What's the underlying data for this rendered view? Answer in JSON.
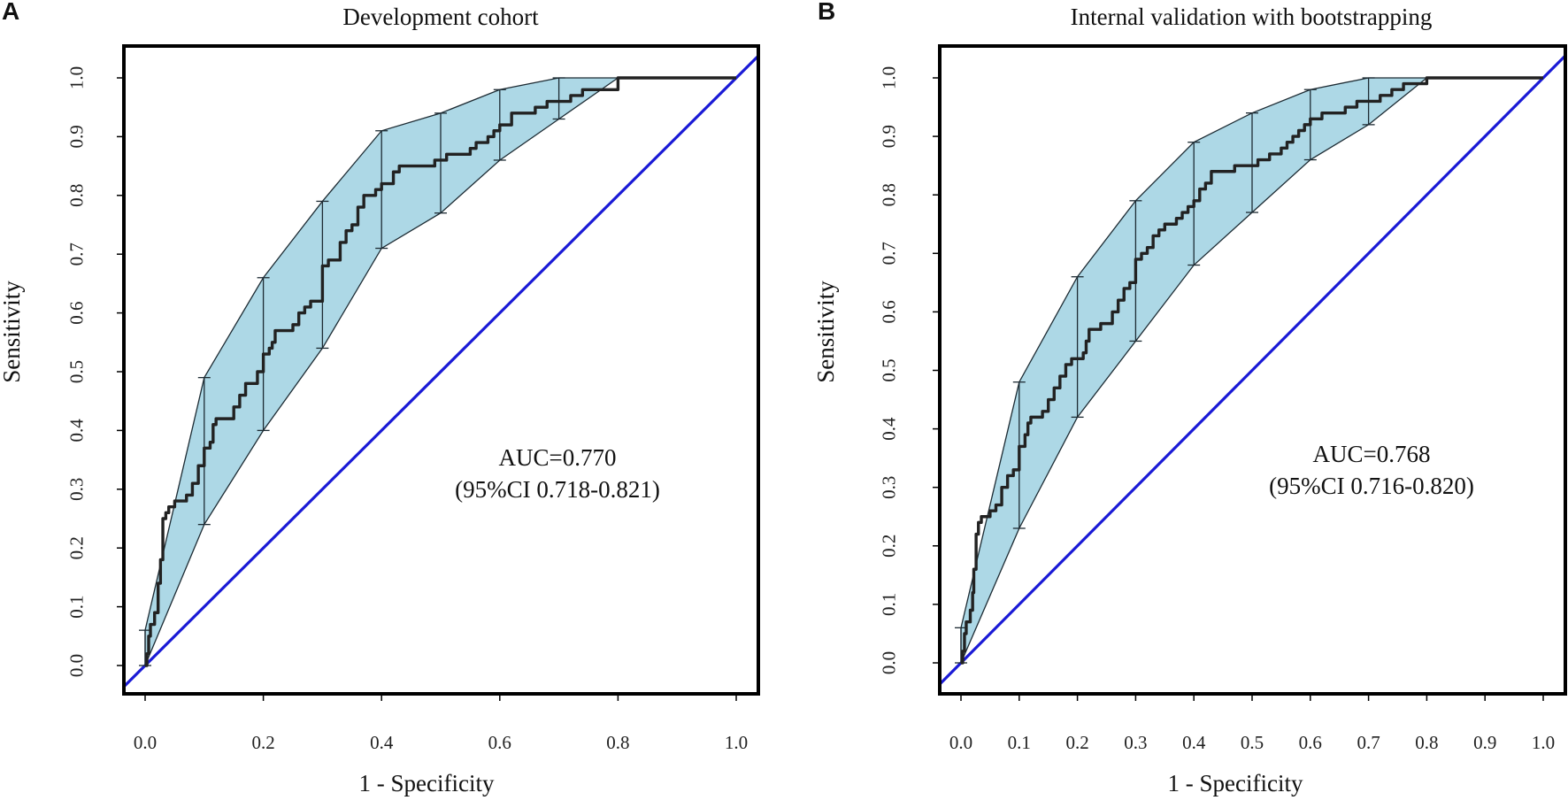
{
  "chart_data": [
    {
      "panel": "A",
      "type": "line",
      "title": "Development cohort",
      "xlabel": "1 - Specificity",
      "ylabel": "Sensitivity",
      "xlim": [
        0,
        1
      ],
      "ylim": [
        0,
        1
      ],
      "xticks": [
        "0.0",
        "0.2",
        "0.4",
        "0.6",
        "0.8",
        "1.0"
      ],
      "yticks": [
        "0.0",
        "0.1",
        "0.2",
        "0.3",
        "0.4",
        "0.5",
        "0.6",
        "0.7",
        "0.8",
        "0.9",
        "1.0"
      ],
      "annotation": {
        "auc": "AUC=0.770",
        "ci": "(95%CI 0.718-0.821)"
      },
      "series": [
        {
          "name": "ROC",
          "color": "#222222",
          "x": [
            0,
            0.003,
            0.006,
            0.009,
            0.013,
            0.016,
            0.02,
            0.022,
            0.026,
            0.03,
            0.035,
            0.04,
            0.05,
            0.06,
            0.07,
            0.08,
            0.09,
            0.1,
            0.11,
            0.115,
            0.12,
            0.14,
            0.15,
            0.16,
            0.17,
            0.18,
            0.19,
            0.2,
            0.21,
            0.215,
            0.22,
            0.24,
            0.25,
            0.26,
            0.27,
            0.28,
            0.29,
            0.3,
            0.31,
            0.32,
            0.33,
            0.34,
            0.35,
            0.36,
            0.37,
            0.38,
            0.39,
            0.4,
            0.41,
            0.42,
            0.43,
            0.45,
            0.47,
            0.49,
            0.51,
            0.53,
            0.55,
            0.56,
            0.57,
            0.58,
            0.59,
            0.6,
            0.62,
            0.64,
            0.66,
            0.67,
            0.68,
            0.7,
            0.72,
            0.74,
            0.76,
            0.8,
            1.0
          ],
          "y": [
            0,
            0.02,
            0.05,
            0.07,
            0.07,
            0.09,
            0.09,
            0.14,
            0.18,
            0.25,
            0.26,
            0.27,
            0.28,
            0.28,
            0.29,
            0.31,
            0.34,
            0.37,
            0.38,
            0.41,
            0.42,
            0.42,
            0.44,
            0.46,
            0.48,
            0.48,
            0.5,
            0.53,
            0.54,
            0.55,
            0.57,
            0.57,
            0.58,
            0.6,
            0.61,
            0.62,
            0.62,
            0.68,
            0.69,
            0.69,
            0.72,
            0.74,
            0.75,
            0.78,
            0.8,
            0.8,
            0.81,
            0.82,
            0.82,
            0.84,
            0.85,
            0.85,
            0.85,
            0.86,
            0.87,
            0.87,
            0.88,
            0.89,
            0.89,
            0.9,
            0.91,
            0.92,
            0.94,
            0.94,
            0.95,
            0.95,
            0.96,
            0.96,
            0.97,
            0.98,
            0.98,
            1.0,
            1.0
          ]
        },
        {
          "name": "Reference",
          "color": "#1a1ad6",
          "x": [
            0,
            1
          ],
          "y": [
            0,
            1
          ]
        }
      ],
      "ci_band": {
        "color": "#add8e6",
        "x": [
          0,
          0.1,
          0.2,
          0.3,
          0.4,
          0.5,
          0.6,
          0.7,
          0.8,
          1.0
        ],
        "lower": [
          0,
          0.24,
          0.4,
          0.54,
          0.71,
          0.77,
          0.86,
          0.93,
          1.0,
          1.0
        ],
        "upper": [
          0.06,
          0.49,
          0.66,
          0.79,
          0.91,
          0.94,
          0.98,
          1.0,
          1.0,
          1.0
        ]
      },
      "error_bars": {
        "x": [
          0,
          0.1,
          0.2,
          0.3,
          0.4,
          0.5,
          0.6,
          0.7
        ],
        "lower": [
          0,
          0.24,
          0.4,
          0.54,
          0.71,
          0.77,
          0.86,
          0.93
        ],
        "upper": [
          0.06,
          0.49,
          0.66,
          0.79,
          0.91,
          0.94,
          0.98,
          1.0
        ]
      }
    },
    {
      "panel": "B",
      "type": "line",
      "title": "Internal validation with bootstrapping",
      "xlabel": "1 - Specificity",
      "ylabel": "Sensitivity",
      "xlim": [
        0,
        1
      ],
      "ylim": [
        0,
        1
      ],
      "xticks": [
        "0.0",
        "0.1",
        "0.2",
        "0.3",
        "0.4",
        "0.5",
        "0.6",
        "0.7",
        "0.8",
        "0.9",
        "1.0"
      ],
      "yticks": [
        "0.0",
        "0.1",
        "0.2",
        "0.3",
        "0.4",
        "0.5",
        "0.6",
        "0.7",
        "0.8",
        "0.9",
        "1.0"
      ],
      "annotation": {
        "auc": "AUC=0.768",
        "ci": "(95%CI 0.716-0.820)"
      },
      "series": [
        {
          "name": "ROC",
          "color": "#222222",
          "x": [
            0,
            0.003,
            0.006,
            0.009,
            0.013,
            0.016,
            0.02,
            0.022,
            0.026,
            0.03,
            0.035,
            0.04,
            0.05,
            0.06,
            0.07,
            0.08,
            0.09,
            0.1,
            0.11,
            0.115,
            0.12,
            0.14,
            0.15,
            0.16,
            0.17,
            0.18,
            0.19,
            0.2,
            0.21,
            0.215,
            0.22,
            0.24,
            0.25,
            0.26,
            0.27,
            0.28,
            0.29,
            0.3,
            0.31,
            0.32,
            0.33,
            0.34,
            0.35,
            0.36,
            0.37,
            0.38,
            0.39,
            0.4,
            0.41,
            0.42,
            0.43,
            0.45,
            0.47,
            0.49,
            0.51,
            0.53,
            0.55,
            0.56,
            0.57,
            0.58,
            0.59,
            0.6,
            0.62,
            0.64,
            0.66,
            0.67,
            0.68,
            0.7,
            0.72,
            0.74,
            0.76,
            0.8,
            1.0
          ],
          "y": [
            0,
            0.02,
            0.05,
            0.07,
            0.07,
            0.09,
            0.12,
            0.16,
            0.22,
            0.24,
            0.25,
            0.25,
            0.26,
            0.27,
            0.3,
            0.32,
            0.33,
            0.37,
            0.39,
            0.41,
            0.42,
            0.43,
            0.45,
            0.47,
            0.49,
            0.51,
            0.52,
            0.52,
            0.53,
            0.55,
            0.57,
            0.58,
            0.58,
            0.6,
            0.62,
            0.64,
            0.65,
            0.69,
            0.7,
            0.71,
            0.73,
            0.74,
            0.75,
            0.75,
            0.76,
            0.77,
            0.78,
            0.79,
            0.81,
            0.82,
            0.84,
            0.84,
            0.85,
            0.85,
            0.86,
            0.87,
            0.88,
            0.89,
            0.9,
            0.91,
            0.92,
            0.93,
            0.94,
            0.94,
            0.95,
            0.95,
            0.96,
            0.96,
            0.97,
            0.98,
            0.99,
            1.0,
            1.0
          ]
        },
        {
          "name": "Reference",
          "color": "#1a1ad6",
          "x": [
            0,
            1
          ],
          "y": [
            0,
            1
          ]
        }
      ],
      "ci_band": {
        "color": "#add8e6",
        "x": [
          0,
          0.1,
          0.2,
          0.3,
          0.4,
          0.5,
          0.6,
          0.7,
          0.8,
          1.0
        ],
        "lower": [
          0,
          0.23,
          0.42,
          0.55,
          0.68,
          0.77,
          0.86,
          0.92,
          1.0,
          1.0
        ],
        "upper": [
          0.06,
          0.48,
          0.66,
          0.79,
          0.89,
          0.94,
          0.98,
          1.0,
          1.0,
          1.0
        ]
      },
      "error_bars": {
        "x": [
          0,
          0.1,
          0.2,
          0.3,
          0.4,
          0.5,
          0.6,
          0.7
        ],
        "lower": [
          0,
          0.23,
          0.42,
          0.55,
          0.68,
          0.77,
          0.86,
          0.92
        ],
        "upper": [
          0.06,
          0.48,
          0.66,
          0.79,
          0.89,
          0.94,
          0.98,
          1.0
        ]
      }
    }
  ]
}
